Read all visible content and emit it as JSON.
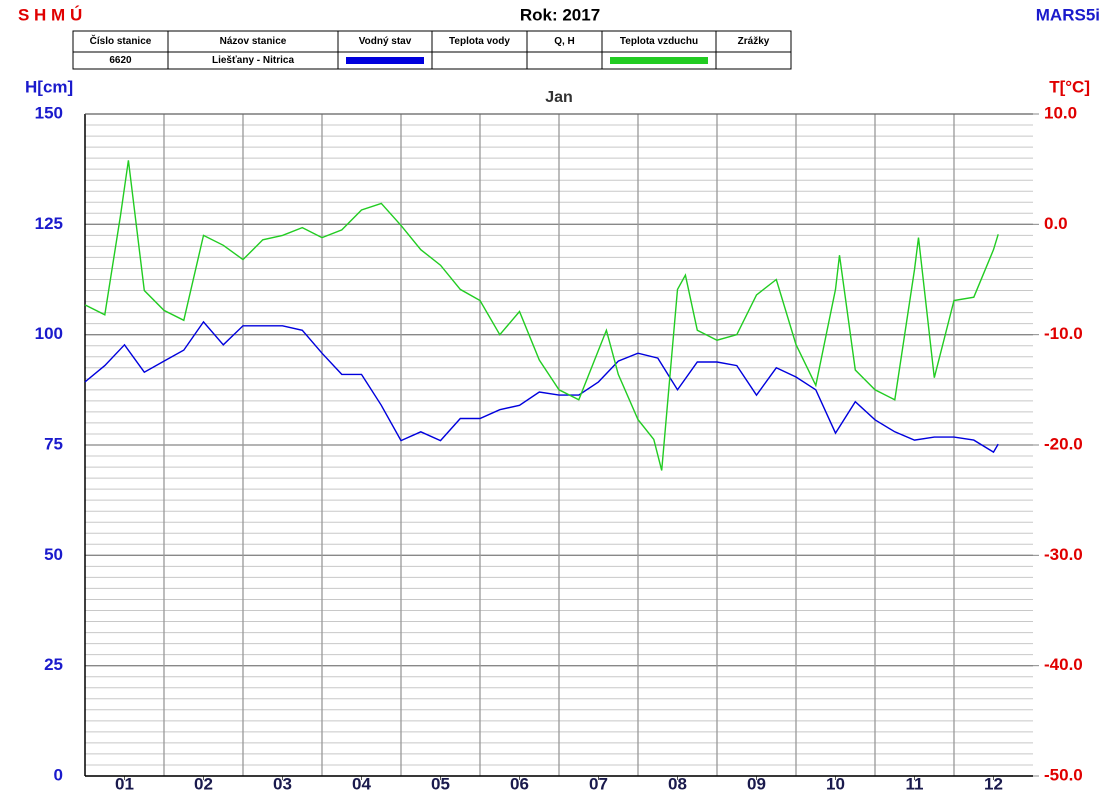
{
  "header": {
    "left": "S H M Ú",
    "title": "Rok: 2017",
    "right": "MARS5i"
  },
  "legend_table": {
    "columns": [
      "Číslo stanice",
      "Názov stanice",
      "Vodný stav",
      "Teplota vody",
      "Q, H",
      "Teplota vzduchu",
      "Zrážky"
    ],
    "row": [
      "6620",
      "Liešťany - Nitrica"
    ]
  },
  "chart_data": {
    "type": "line",
    "title": "Jan",
    "ylabel": "H[cm]",
    "y2label": "T[°C]",
    "xlim": [
      0,
      12
    ],
    "xticks": [
      {
        "value": 0.5,
        "label": "01"
      },
      {
        "value": 1.5,
        "label": "02"
      },
      {
        "value": 2.5,
        "label": "03"
      },
      {
        "value": 3.5,
        "label": "04"
      },
      {
        "value": 4.5,
        "label": "05"
      },
      {
        "value": 5.5,
        "label": "06"
      },
      {
        "value": 6.5,
        "label": "07"
      },
      {
        "value": 7.5,
        "label": "08"
      },
      {
        "value": 8.5,
        "label": "09"
      },
      {
        "value": 9.5,
        "label": "10"
      },
      {
        "value": 10.5,
        "label": "11"
      },
      {
        "value": 11.5,
        "label": "12"
      }
    ],
    "ylim": [
      0,
      150
    ],
    "yticks": [
      0,
      25,
      50,
      75,
      100,
      125,
      150
    ],
    "y2lim": [
      -50,
      10
    ],
    "y2ticks": [
      {
        "value": -50,
        "label": "-50.0"
      },
      {
        "value": -40,
        "label": "-40.0"
      },
      {
        "value": -30,
        "label": "-30.0"
      },
      {
        "value": -20,
        "label": "-20.0"
      },
      {
        "value": -10,
        "label": "-10.0"
      },
      {
        "value": 0,
        "label": "0.0"
      },
      {
        "value": 10,
        "label": "10.0"
      }
    ],
    "grid": true,
    "series": [
      {
        "name": "Vodný stav",
        "color": "#0000dd",
        "axis": "y",
        "x": [
          0,
          0.25,
          0.5,
          0.75,
          1,
          1.25,
          1.5,
          1.75,
          2,
          2.25,
          2.5,
          2.75,
          3,
          3.25,
          3.5,
          3.75,
          4,
          4.25,
          4.5,
          4.75,
          5,
          5.25,
          5.5,
          5.75,
          6,
          6.25,
          6.5,
          6.75,
          7,
          7.25,
          7.5,
          7.75,
          8,
          8.25,
          8.5,
          8.75,
          9,
          9.25,
          9.5,
          9.75,
          10,
          10.25,
          10.5,
          10.75,
          11,
          11.25,
          11.5,
          11.56
        ],
        "values": [
          89.3,
          93,
          97.7,
          91.5,
          94,
          96.5,
          102.9,
          97.7,
          102,
          102,
          102,
          101,
          95.8,
          91,
          91,
          84,
          76,
          78,
          76,
          81,
          81,
          83,
          84,
          87,
          86.3,
          86.3,
          89.3,
          94,
          95.8,
          94.7,
          87.5,
          93.8,
          93.8,
          93,
          86.3,
          92.5,
          90.4,
          87.5,
          77.7,
          84.8,
          80.7,
          78,
          76.1,
          76.8,
          76.8,
          76.1,
          73.4,
          75.2
        ]
      },
      {
        "name": "Teplota vzduchu",
        "color": "#22cc22",
        "axis": "y2",
        "x": [
          0,
          0.25,
          0.45,
          0.55,
          0.75,
          1,
          1.25,
          1.5,
          1.75,
          2,
          2.25,
          2.5,
          2.75,
          3,
          3.25,
          3.5,
          3.75,
          4,
          4.25,
          4.5,
          4.75,
          5,
          5.25,
          5.5,
          5.75,
          6,
          6.25,
          6.5,
          6.6,
          6.75,
          7,
          7.2,
          7.3,
          7.5,
          7.6,
          7.75,
          8,
          8.25,
          8.5,
          8.75,
          9,
          9.25,
          9.5,
          9.55,
          9.75,
          10,
          10.25,
          10.5,
          10.55,
          10.75,
          11,
          11.25,
          11.5,
          11.56
        ],
        "values": [
          -7.3,
          -8.2,
          0.8,
          5.8,
          -6.0,
          -7.8,
          -8.7,
          -1.0,
          -1.9,
          -3.2,
          -1.4,
          -1.0,
          -0.3,
          -1.2,
          -0.5,
          1.3,
          1.9,
          -0.1,
          -2.3,
          -3.7,
          -5.9,
          -6.9,
          -10.0,
          -7.9,
          -12.3,
          -15.0,
          -15.9,
          -11.4,
          -9.6,
          -13.6,
          -17.7,
          -19.5,
          -22.3,
          -5.9,
          -4.6,
          -9.6,
          -10.5,
          -10.0,
          -6.4,
          -5.0,
          -10.9,
          -14.6,
          -5.9,
          -2.8,
          -13.2,
          -15.0,
          -15.9,
          -4.1,
          -1.2,
          -13.9,
          -6.9,
          -6.6,
          -2.3,
          -0.9
        ]
      }
    ]
  }
}
